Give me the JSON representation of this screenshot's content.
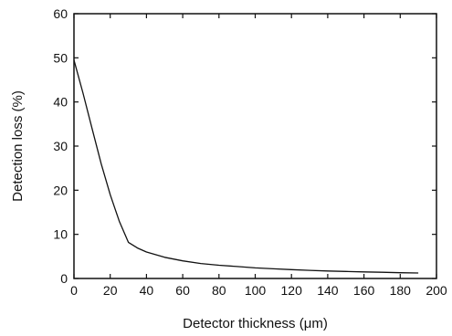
{
  "chart_data": {
    "type": "line",
    "title": "",
    "xlabel": "Detector thickness (μm)",
    "ylabel": "Detection loss (%)",
    "xlim": [
      0,
      200
    ],
    "ylim": [
      0,
      60
    ],
    "x_ticks": [
      0,
      20,
      40,
      60,
      80,
      100,
      120,
      140,
      160,
      180,
      200
    ],
    "y_ticks": [
      0,
      10,
      20,
      30,
      40,
      50,
      60
    ],
    "grid": false,
    "legend": "none",
    "colors": {
      "line": "#111111",
      "axis": "#111111"
    },
    "series": [
      {
        "x": [
          0,
          5,
          10,
          15,
          20,
          25,
          30,
          35,
          40,
          50,
          60,
          70,
          80,
          90,
          100,
          110,
          120,
          130,
          140,
          150,
          160,
          170,
          180,
          190
        ],
        "y": [
          49.5,
          42,
          34,
          26,
          19,
          13,
          8.2,
          6.9,
          6.0,
          4.8,
          4.0,
          3.4,
          3.0,
          2.7,
          2.4,
          2.2,
          2.0,
          1.85,
          1.7,
          1.6,
          1.5,
          1.4,
          1.3,
          1.25
        ]
      }
    ]
  }
}
